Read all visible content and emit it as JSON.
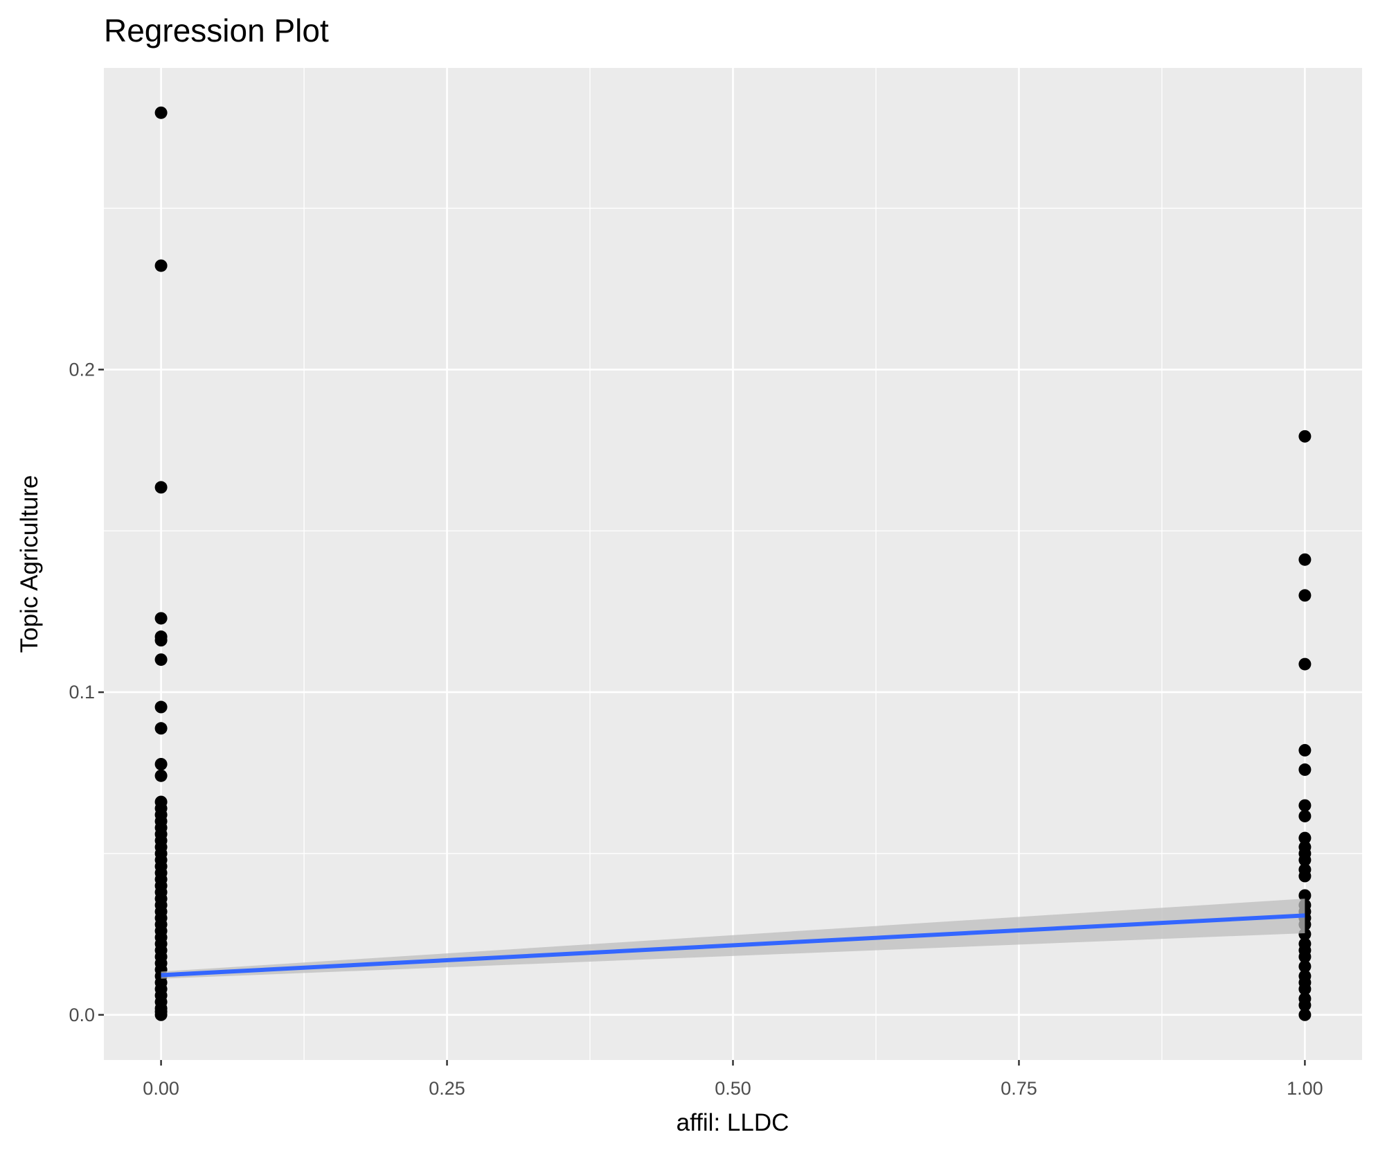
{
  "chart_data": {
    "type": "scatter",
    "title": "Regression Plot",
    "x_label": "affil: LLDC",
    "y_label": "Topic Agriculture",
    "xlim": [
      -0.05,
      1.05
    ],
    "ylim": [
      -0.014,
      0.2935
    ],
    "xticks": [
      {
        "value": 0,
        "label": "0.00"
      },
      {
        "value": 0.25,
        "label": "0.25"
      },
      {
        "value": 0.5,
        "label": "0.50"
      },
      {
        "value": 0.75,
        "label": "0.75"
      },
      {
        "value": 1,
        "label": "1.00"
      }
    ],
    "yticks": [
      {
        "value": 0,
        "label": "0.0"
      },
      0.1,
      0.2
    ],
    "minor_xticks": [
      0.125,
      0.375,
      0.625,
      0.875
    ],
    "minor_yticks": [
      0.05,
      0.15,
      0.25
    ],
    "grid": true,
    "point_color": "#000000",
    "points": {
      "x": [
        0,
        0,
        0,
        0,
        0,
        0,
        0,
        0,
        0,
        0,
        0,
        0,
        0,
        0,
        0,
        0,
        0,
        0,
        0,
        0,
        0,
        0,
        0,
        0,
        0,
        0,
        0,
        0,
        0,
        0,
        0,
        0,
        0,
        0,
        0,
        0,
        0,
        0,
        0,
        0,
        0,
        0,
        0,
        0,
        0,
        0,
        1,
        1,
        1,
        1,
        1,
        1,
        1,
        1,
        1,
        1,
        1,
        1,
        1,
        1,
        1,
        1,
        1,
        1,
        1,
        1,
        1,
        1,
        1,
        1,
        1,
        1,
        1,
        1,
        1,
        1
      ],
      "y": [
        0.2796,
        0.2322,
        0.1635,
        0.1229,
        0.1172,
        0.1161,
        0.1101,
        0.0954,
        0.0888,
        0.0777,
        0.0741,
        0.066,
        0.064,
        0.062,
        0.06,
        0.058,
        0.056,
        0.054,
        0.052,
        0.05,
        0.048,
        0.046,
        0.044,
        0.042,
        0.04,
        0.038,
        0.036,
        0.034,
        0.032,
        0.03,
        0.028,
        0.026,
        0.024,
        0.022,
        0.02,
        0.018,
        0.016,
        0.014,
        0.012,
        0.01,
        0.008,
        0.006,
        0.004,
        0.002,
        0.001,
        0,
        0.1793,
        0.1411,
        0.13,
        0.1087,
        0.082,
        0.076,
        0.0649,
        0.0616,
        0.0548,
        0.052,
        0.05,
        0.048,
        0.045,
        0.043,
        0.037,
        0.034,
        0.032,
        0.03,
        0.028,
        0.025,
        0.022,
        0.02,
        0.018,
        0.015,
        0.012,
        0.01,
        0.008,
        0.005,
        0.003,
        0
      ]
    },
    "fit": {
      "color": "#3366ff",
      "band_color": "#bebebe",
      "x": [
        0,
        1
      ],
      "y": [
        0.0123,
        0.0308
      ],
      "lower": [
        0.0112,
        0.0253
      ],
      "upper": [
        0.0134,
        0.036
      ]
    }
  }
}
